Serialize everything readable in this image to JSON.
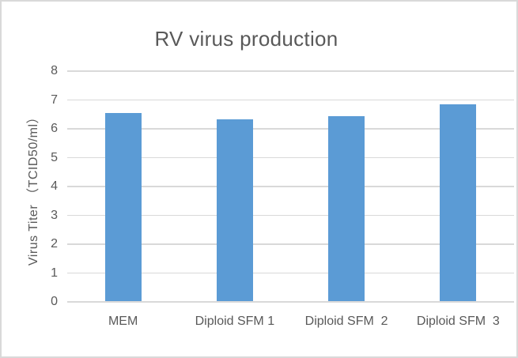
{
  "frame": {
    "background": "#ffffff",
    "border_color": "#d9d9d9"
  },
  "chart_data": {
    "type": "bar",
    "title": "RV virus production",
    "categories": [
      "MEM",
      "Diploid SFM 1",
      "Diploid SFM  2",
      "Diploid SFM  3"
    ],
    "values": [
      6.5,
      6.3,
      6.4,
      6.8
    ],
    "xlabel": "",
    "ylabel": "Virus Titer （TCID50/ml）",
    "ylim": [
      0,
      8
    ],
    "ytick_interval": 1,
    "ytick_labels": [
      "0",
      "1",
      "2",
      "3",
      "4",
      "5",
      "6",
      "7",
      "8"
    ],
    "grid": true,
    "legend": false,
    "bar_color": "#5b9bd5",
    "gridline_color": "#d9d9d9",
    "text_color": "#595959",
    "title_color": "#595959"
  }
}
